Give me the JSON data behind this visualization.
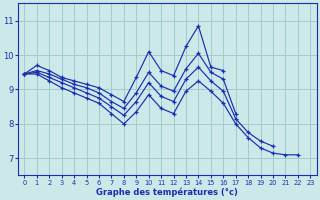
{
  "background_color": "#cce8e8",
  "grid_color": "#a0cccc",
  "line_color": "#1a2eb0",
  "xlabel": "Graphe des températures (°c)",
  "ylim": [
    6.5,
    11.5
  ],
  "xlim": [
    -0.5,
    23.5
  ],
  "yticks": [
    7,
    8,
    9,
    10,
    11
  ],
  "xticks": [
    0,
    1,
    2,
    3,
    4,
    5,
    6,
    7,
    8,
    9,
    10,
    11,
    12,
    13,
    14,
    15,
    16,
    17,
    18,
    19,
    20,
    21,
    22,
    23
  ],
  "series": [
    [
      9.45,
      9.7,
      9.55,
      9.35,
      9.25,
      9.15,
      9.05,
      8.85,
      8.65,
      9.35,
      10.1,
      9.55,
      9.4,
      10.25,
      10.85,
      9.65,
      9.55,
      null,
      null,
      null,
      null,
      null,
      null,
      null
    ],
    [
      9.45,
      9.55,
      9.45,
      9.3,
      9.15,
      9.05,
      8.9,
      8.65,
      8.45,
      8.9,
      9.5,
      9.1,
      8.95,
      9.6,
      10.05,
      9.5,
      9.3,
      8.3,
      null,
      null,
      null,
      null,
      null,
      null
    ],
    [
      9.45,
      9.5,
      9.35,
      9.2,
      9.05,
      8.9,
      8.75,
      8.5,
      8.25,
      8.65,
      9.2,
      8.8,
      8.65,
      9.3,
      9.65,
      9.25,
      8.95,
      8.15,
      7.75,
      7.5,
      7.35,
      null,
      null,
      null
    ],
    [
      9.45,
      9.45,
      9.25,
      9.05,
      8.9,
      8.75,
      8.6,
      8.3,
      8.0,
      8.35,
      8.85,
      8.45,
      8.3,
      8.95,
      9.25,
      8.95,
      8.6,
      8.0,
      7.6,
      7.3,
      7.15,
      7.1,
      7.1,
      null
    ]
  ]
}
